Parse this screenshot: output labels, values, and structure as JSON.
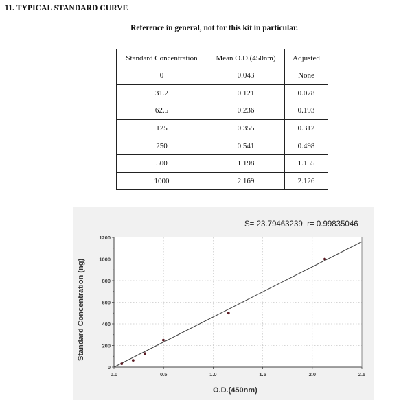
{
  "document": {
    "section_title": "11. TYPICAL STANDARD CURVE",
    "subtitle": "Reference in general, not for this kit in particular."
  },
  "table": {
    "headers": [
      "Standard Concentration",
      "Mean O.D.(450nm)",
      "Adjusted"
    ],
    "rows": [
      [
        "0",
        "0.043",
        "None"
      ],
      [
        "31.2",
        "0.121",
        "0.078"
      ],
      [
        "62.5",
        "0.236",
        "0.193"
      ],
      [
        "125",
        "0.355",
        "0.312"
      ],
      [
        "250",
        "0.541",
        "0.498"
      ],
      [
        "500",
        "1.198",
        "1.155"
      ],
      [
        "1000",
        "2.169",
        "2.126"
      ]
    ]
  },
  "chart": {
    "stats_label": "S= 23.79463239  r= 0.99835046",
    "xlabel": "O.D.(450nm)",
    "ylabel": "Standard Concentration (ng)",
    "x_ticks": [
      "0.0",
      "0.5",
      "1.0",
      "1.5",
      "2.0",
      "2.5"
    ],
    "y_ticks": [
      "0",
      "200",
      "400",
      "600",
      "800",
      "1000",
      "1200"
    ]
  },
  "chart_data": {
    "type": "scatter",
    "title": "",
    "annotation": "S= 23.79463239  r= 0.99835046",
    "xlabel": "O.D.(450nm)",
    "ylabel": "Standard Concentration (ng)",
    "xlim": [
      0,
      2.5
    ],
    "ylim": [
      0,
      1200
    ],
    "x_ticks": [
      0.0,
      0.5,
      1.0,
      1.5,
      2.0,
      2.5
    ],
    "y_ticks": [
      0,
      200,
      400,
      600,
      800,
      1000,
      1200
    ],
    "grid": true,
    "series": [
      {
        "name": "Standards",
        "x": [
          0.078,
          0.193,
          0.312,
          0.498,
          1.155,
          2.126
        ],
        "y": [
          31.2,
          62.5,
          125,
          250,
          500,
          1000
        ]
      },
      {
        "name": "Fit line",
        "type": "line",
        "x": [
          0.0,
          2.5
        ],
        "y": [
          0,
          1160
        ]
      }
    ]
  }
}
